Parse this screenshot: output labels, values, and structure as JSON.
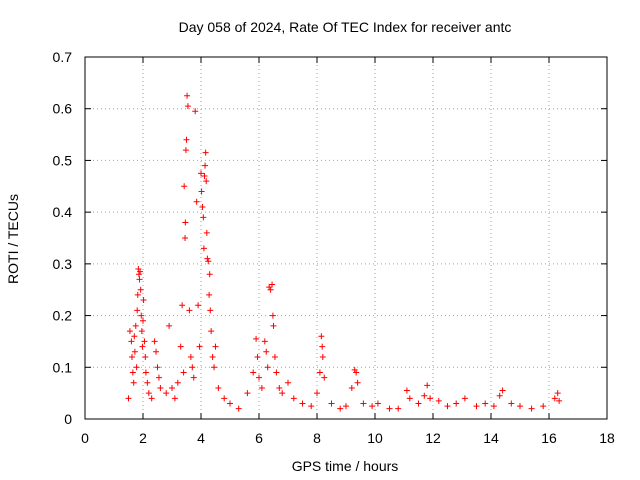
{
  "chart_data": {
    "type": "scatter",
    "title": "Day 058 of 2024, Rate Of TEC Index for receiver antc",
    "xlabel": "GPS time / hours",
    "ylabel": "ROTI / TECUs",
    "xlim": [
      0,
      18
    ],
    "ylim": [
      0,
      0.7
    ],
    "x_ticks": [
      0,
      2,
      4,
      6,
      8,
      10,
      12,
      14,
      16,
      18
    ],
    "x_tick_labels": [
      "0",
      "2",
      "4",
      "6",
      "8",
      "10",
      "12",
      "14",
      "16",
      "18"
    ],
    "y_ticks": [
      0,
      0.1,
      0.2,
      0.3,
      0.4,
      0.5,
      0.6,
      0.7
    ],
    "y_tick_labels": [
      "0",
      "0.1",
      "0.2",
      "0.3",
      "0.4",
      "0.5",
      "0.6",
      "0.7"
    ],
    "grid": true,
    "marker": "+",
    "series_color": "#ff0000",
    "series": [
      {
        "name": "ROTI",
        "points": [
          [
            1.5,
            0.04
          ],
          [
            1.55,
            0.17
          ],
          [
            1.6,
            0.15
          ],
          [
            1.62,
            0.12
          ],
          [
            1.65,
            0.09
          ],
          [
            1.68,
            0.07
          ],
          [
            1.7,
            0.16
          ],
          [
            1.72,
            0.13
          ],
          [
            1.75,
            0.18
          ],
          [
            1.78,
            0.1
          ],
          [
            1.8,
            0.21
          ],
          [
            1.82,
            0.24
          ],
          [
            1.84,
            0.29
          ],
          [
            1.86,
            0.28
          ],
          [
            1.88,
            0.27
          ],
          [
            1.9,
            0.285
          ],
          [
            1.92,
            0.25
          ],
          [
            1.94,
            0.2
          ],
          [
            1.96,
            0.17
          ],
          [
            1.98,
            0.14
          ],
          [
            2.0,
            0.19
          ],
          [
            2.02,
            0.23
          ],
          [
            2.05,
            0.15
          ],
          [
            2.08,
            0.12
          ],
          [
            2.1,
            0.09
          ],
          [
            2.15,
            0.07
          ],
          [
            2.2,
            0.05
          ],
          [
            2.3,
            0.04
          ],
          [
            2.4,
            0.15
          ],
          [
            2.45,
            0.13
          ],
          [
            2.5,
            0.1
          ],
          [
            2.55,
            0.08
          ],
          [
            2.6,
            0.06
          ],
          [
            2.8,
            0.05
          ],
          [
            2.9,
            0.18
          ],
          [
            3.0,
            0.06
          ],
          [
            3.1,
            0.04
          ],
          [
            3.2,
            0.07
          ],
          [
            3.3,
            0.14
          ],
          [
            3.35,
            0.22
          ],
          [
            3.4,
            0.09
          ],
          [
            3.42,
            0.45
          ],
          [
            3.45,
            0.35
          ],
          [
            3.46,
            0.38
          ],
          [
            3.48,
            0.52
          ],
          [
            3.5,
            0.54
          ],
          [
            3.52,
            0.625
          ],
          [
            3.55,
            0.605
          ],
          [
            3.6,
            0.21
          ],
          [
            3.65,
            0.12
          ],
          [
            3.7,
            0.1
          ],
          [
            3.75,
            0.08
          ],
          [
            3.8,
            0.595
          ],
          [
            3.85,
            0.42
          ],
          [
            3.9,
            0.22
          ],
          [
            3.95,
            0.14
          ],
          [
            4.0,
            0.475
          ],
          [
            4.02,
            0.44
          ],
          [
            4.05,
            0.41
          ],
          [
            4.08,
            0.39
          ],
          [
            4.1,
            0.33
          ],
          [
            4.12,
            0.47
          ],
          [
            4.14,
            0.49
          ],
          [
            4.16,
            0.515
          ],
          [
            4.18,
            0.46
          ],
          [
            4.2,
            0.36
          ],
          [
            4.22,
            0.31
          ],
          [
            4.25,
            0.305
          ],
          [
            4.28,
            0.24
          ],
          [
            4.3,
            0.28
          ],
          [
            4.32,
            0.21
          ],
          [
            4.35,
            0.17
          ],
          [
            4.4,
            0.12
          ],
          [
            4.45,
            0.1
          ],
          [
            4.5,
            0.14
          ],
          [
            4.6,
            0.06
          ],
          [
            4.8,
            0.04
          ],
          [
            5.0,
            0.03
          ],
          [
            5.3,
            0.02
          ],
          [
            5.6,
            0.05
          ],
          [
            5.8,
            0.09
          ],
          [
            5.9,
            0.155
          ],
          [
            5.95,
            0.12
          ],
          [
            6.0,
            0.08
          ],
          [
            6.1,
            0.06
          ],
          [
            6.2,
            0.15
          ],
          [
            6.25,
            0.13
          ],
          [
            6.3,
            0.1
          ],
          [
            6.35,
            0.255
          ],
          [
            6.4,
            0.25
          ],
          [
            6.45,
            0.26
          ],
          [
            6.48,
            0.2
          ],
          [
            6.5,
            0.18
          ],
          [
            6.55,
            0.12
          ],
          [
            6.6,
            0.09
          ],
          [
            6.7,
            0.06
          ],
          [
            6.8,
            0.05
          ],
          [
            7.0,
            0.07
          ],
          [
            7.2,
            0.04
          ],
          [
            7.5,
            0.03
          ],
          [
            7.8,
            0.025
          ],
          [
            8.0,
            0.05
          ],
          [
            8.1,
            0.09
          ],
          [
            8.15,
            0.16
          ],
          [
            8.18,
            0.14
          ],
          [
            8.2,
            0.12
          ],
          [
            8.25,
            0.08
          ],
          [
            8.5,
            0.03
          ],
          [
            8.8,
            0.02
          ],
          [
            9.0,
            0.025
          ],
          [
            9.2,
            0.06
          ],
          [
            9.3,
            0.095
          ],
          [
            9.35,
            0.09
          ],
          [
            9.4,
            0.07
          ],
          [
            9.6,
            0.03
          ],
          [
            9.9,
            0.025
          ],
          [
            10.1,
            0.03
          ],
          [
            10.5,
            0.02
          ],
          [
            10.8,
            0.02
          ],
          [
            11.1,
            0.055
          ],
          [
            11.2,
            0.04
          ],
          [
            11.5,
            0.03
          ],
          [
            11.7,
            0.045
          ],
          [
            11.8,
            0.065
          ],
          [
            11.9,
            0.04
          ],
          [
            12.2,
            0.035
          ],
          [
            12.5,
            0.025
          ],
          [
            12.8,
            0.03
          ],
          [
            13.1,
            0.04
          ],
          [
            13.5,
            0.025
          ],
          [
            13.8,
            0.03
          ],
          [
            14.1,
            0.025
          ],
          [
            14.3,
            0.045
          ],
          [
            14.4,
            0.055
          ],
          [
            14.7,
            0.03
          ],
          [
            15.0,
            0.025
          ],
          [
            15.4,
            0.02
          ],
          [
            15.8,
            0.025
          ],
          [
            16.2,
            0.04
          ],
          [
            16.3,
            0.05
          ],
          [
            16.35,
            0.035
          ]
        ]
      }
    ]
  }
}
